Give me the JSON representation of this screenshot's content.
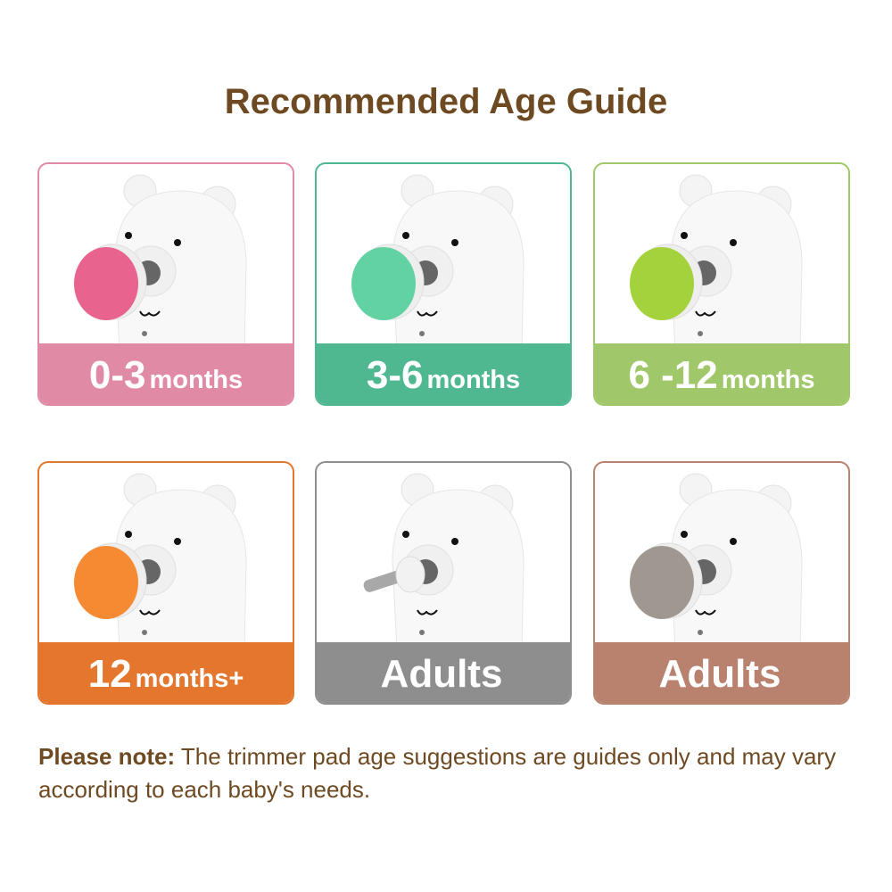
{
  "title": "Recommended Age Guide",
  "cards": [
    {
      "range": "0-3",
      "unit": "months",
      "color": "#e08aa6",
      "pad_color": "#e8648e",
      "attachment": "pink-pad"
    },
    {
      "range": "3-6",
      "unit": "months",
      "color": "#4fb891",
      "pad_color": "#62d2a2",
      "attachment": "green-pad"
    },
    {
      "range": "6 -12",
      "unit": "months",
      "color": "#a0c86a",
      "pad_color": "#a4d23c",
      "attachment": "lime-pad"
    },
    {
      "range": "12",
      "unit": "months+",
      "color": "#e4762e",
      "pad_color": "#f58a32",
      "attachment": "orange-pad"
    },
    {
      "range": "Adults",
      "unit": "",
      "color": "#8e8e8e",
      "pad_color": "#9a9a9a",
      "attachment": "drill-bit"
    },
    {
      "range": "Adults",
      "unit": "",
      "color": "#b8826e",
      "pad_color": "#a09890",
      "attachment": "grey-pad"
    }
  ],
  "note": {
    "label": "Please note:",
    "text": " The trimmer pad age suggestions are guides only and may vary according to each baby's needs."
  }
}
